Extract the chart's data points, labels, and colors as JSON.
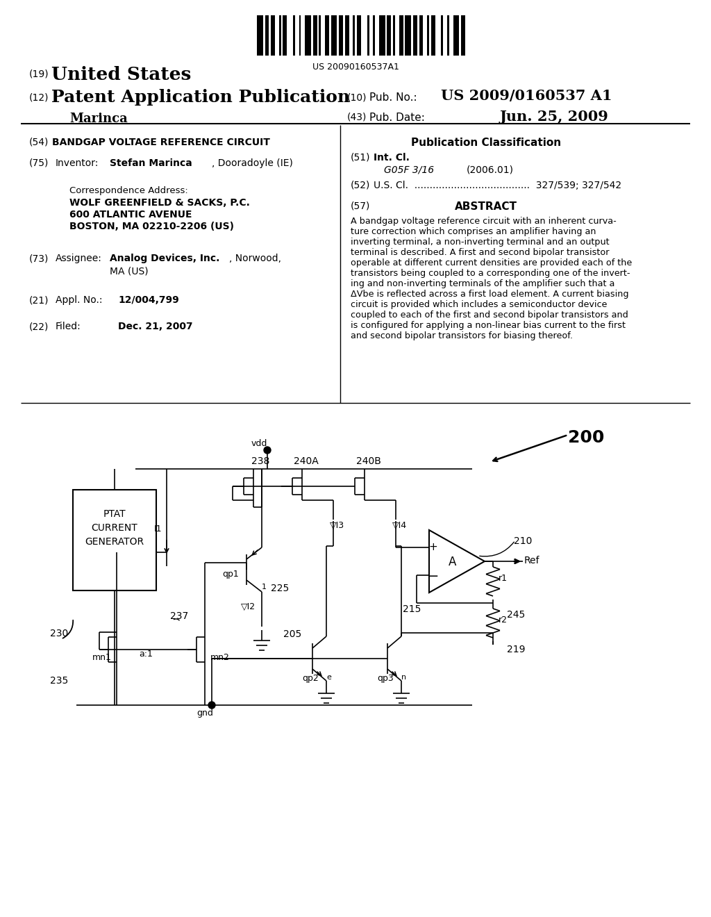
{
  "patent_number": "US 20090160537A1",
  "pub_number": "US 2009/0160537 A1",
  "pub_date": "Jun. 25, 2009",
  "invention_title": "BANDGAP VOLTAGE REFERENCE CIRCUIT",
  "int_cl": "G05F 3/16",
  "int_cl_date": "(2006.01)",
  "us_cl": "327/539; 327/542",
  "abstract_lines": [
    "A bandgap voltage reference circuit with an inherent curva-",
    "ture correction which comprises an amplifier having an",
    "inverting terminal, a non-inverting terminal and an output",
    "terminal is described. A first and second bipolar transistor",
    "operable at different current densities are provided each of the",
    "transistors being coupled to a corresponding one of the invert-",
    "ing and non-inverting terminals of the amplifier such that a",
    "ΔVbe is reflected across a first load element. A current biasing",
    "circuit is provided which includes a semiconductor device",
    "coupled to each of the first and second bipolar transistors and",
    "is configured for applying a non-linear bias current to the first",
    "and second bipolar transistors for biasing thereof."
  ],
  "bg_color": "#ffffff",
  "diagram_ref": "200"
}
